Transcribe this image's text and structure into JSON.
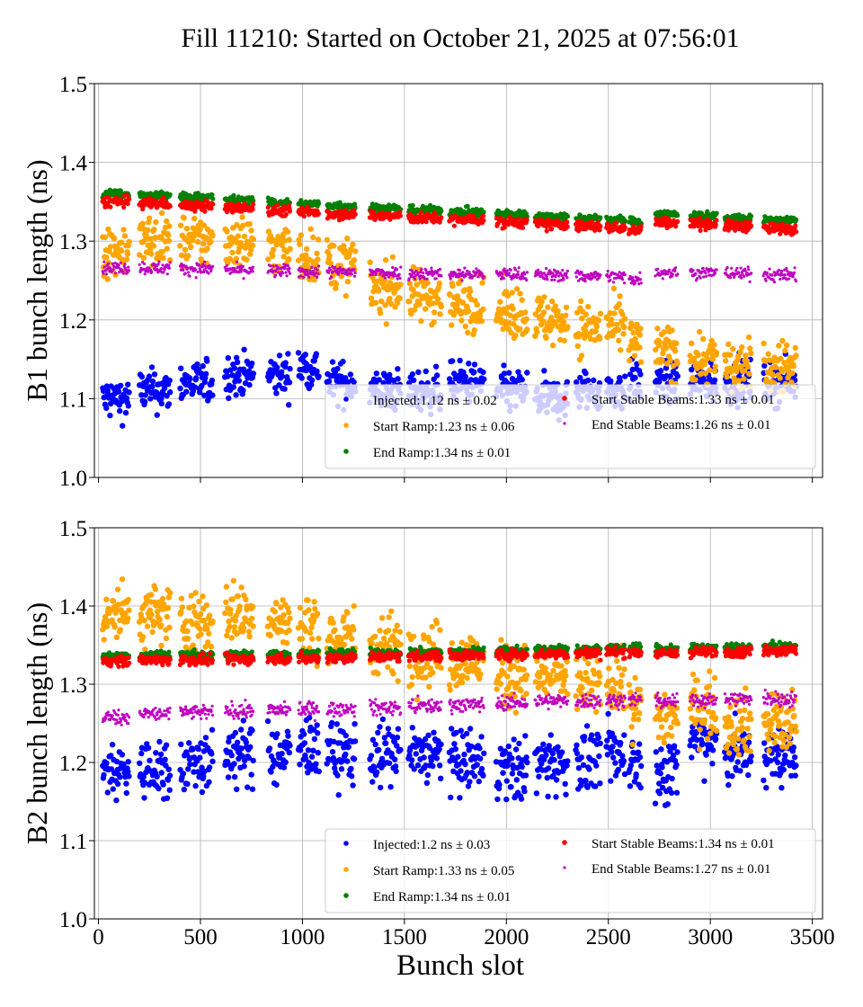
{
  "title": "Fill 11210: Started on October 21, 2025 at 07:56:01",
  "chart_data": [
    {
      "type": "scatter",
      "ylabel": "B1 bunch length (ns)",
      "xlabel": "",
      "xlim": [
        -20,
        3550
      ],
      "ylim": [
        1.0,
        1.5
      ],
      "xticks": [
        "0",
        "500",
        "1000",
        "1500",
        "2000",
        "2500",
        "3000",
        "3500"
      ],
      "yticks": [
        "1.0",
        "1.1",
        "1.2",
        "1.3",
        "1.4",
        "1.5"
      ],
      "grid": true,
      "legend_placement": "lower-right",
      "trains": [
        [
          20,
          150
        ],
        [
          200,
          350
        ],
        [
          400,
          560
        ],
        [
          620,
          760
        ],
        [
          830,
          940
        ],
        [
          980,
          1080
        ],
        [
          1120,
          1260
        ],
        [
          1330,
          1480
        ],
        [
          1520,
          1680
        ],
        [
          1720,
          1890
        ],
        [
          1950,
          2100
        ],
        [
          2140,
          2300
        ],
        [
          2340,
          2460
        ],
        [
          2490,
          2580
        ],
        [
          2600,
          2660
        ],
        [
          2730,
          2840
        ],
        [
          2900,
          3030
        ],
        [
          3070,
          3200
        ],
        [
          3260,
          3420
        ]
      ],
      "series": [
        {
          "name": "Injected:1.12 ns ± 0.02",
          "color": "#0000ff",
          "mean_per_train": [
            1.1,
            1.11,
            1.12,
            1.13,
            1.13,
            1.14,
            1.12,
            1.11,
            1.11,
            1.12,
            1.11,
            1.1,
            1.11,
            1.11,
            1.12,
            1.12,
            1.12,
            1.12,
            1.12
          ]
        },
        {
          "name": "Start Ramp:1.23 ns ± 0.06",
          "color": "#ffa500",
          "mean_per_train": [
            1.29,
            1.3,
            1.3,
            1.3,
            1.29,
            1.28,
            1.27,
            1.24,
            1.23,
            1.22,
            1.21,
            1.2,
            1.19,
            1.19,
            1.17,
            1.16,
            1.15,
            1.14,
            1.14
          ]
        },
        {
          "name": "End Ramp:1.34 ns ± 0.01",
          "color": "#008000",
          "mean_per_train": [
            1.36,
            1.358,
            1.356,
            1.352,
            1.349,
            1.347,
            1.345,
            1.342,
            1.339,
            1.337,
            1.334,
            1.331,
            1.329,
            1.327,
            1.325,
            1.334,
            1.332,
            1.329,
            1.326
          ]
        },
        {
          "name": "Start Stable Beams:1.33 ns ± 0.01",
          "color": "#ff0000",
          "mean_per_train": [
            1.35,
            1.348,
            1.345,
            1.342,
            1.339,
            1.337,
            1.335,
            1.332,
            1.329,
            1.327,
            1.324,
            1.321,
            1.319,
            1.317,
            1.315,
            1.324,
            1.322,
            1.319,
            1.316
          ]
        },
        {
          "name": "End Stable Beams:1.26 ns ± 0.01",
          "color": "#bf00bf",
          "mean_per_train": [
            1.266,
            1.266,
            1.265,
            1.263,
            1.262,
            1.261,
            1.261,
            1.26,
            1.259,
            1.258,
            1.258,
            1.257,
            1.256,
            1.255,
            1.252,
            1.261,
            1.26,
            1.259,
            1.257
          ]
        }
      ]
    },
    {
      "type": "scatter",
      "ylabel": "B2 bunch length (ns)",
      "xlabel": "Bunch slot",
      "xlim": [
        -20,
        3550
      ],
      "ylim": [
        1.0,
        1.5
      ],
      "xticks": [
        "0",
        "500",
        "1000",
        "1500",
        "2000",
        "2500",
        "3000",
        "3500"
      ],
      "yticks": [
        "1.0",
        "1.1",
        "1.2",
        "1.3",
        "1.4",
        "1.5"
      ],
      "grid": true,
      "legend_placement": "lower-right",
      "trains": [
        [
          20,
          150
        ],
        [
          200,
          350
        ],
        [
          400,
          560
        ],
        [
          620,
          760
        ],
        [
          830,
          940
        ],
        [
          980,
          1080
        ],
        [
          1120,
          1260
        ],
        [
          1330,
          1480
        ],
        [
          1520,
          1680
        ],
        [
          1720,
          1890
        ],
        [
          1950,
          2100
        ],
        [
          2140,
          2300
        ],
        [
          2340,
          2460
        ],
        [
          2490,
          2580
        ],
        [
          2600,
          2660
        ],
        [
          2730,
          2840
        ],
        [
          2900,
          3030
        ],
        [
          3070,
          3200
        ],
        [
          3260,
          3420
        ]
      ],
      "series": [
        {
          "name": "Injected:1.2 ns ± 0.03",
          "color": "#0000ff",
          "mean_per_train": [
            1.19,
            1.19,
            1.2,
            1.21,
            1.21,
            1.22,
            1.21,
            1.21,
            1.21,
            1.2,
            1.19,
            1.2,
            1.2,
            1.21,
            1.2,
            1.19,
            1.23,
            1.21,
            1.21
          ]
        },
        {
          "name": "Start Ramp:1.33 ns ± 0.05",
          "color": "#ffa500",
          "mean_per_train": [
            1.39,
            1.39,
            1.38,
            1.39,
            1.38,
            1.37,
            1.36,
            1.35,
            1.34,
            1.33,
            1.31,
            1.31,
            1.3,
            1.3,
            1.27,
            1.26,
            1.27,
            1.25,
            1.25
          ]
        },
        {
          "name": "End Ramp:1.34 ns ± 0.01",
          "color": "#008000",
          "mean_per_train": [
            1.336,
            1.337,
            1.337,
            1.338,
            1.338,
            1.339,
            1.34,
            1.34,
            1.341,
            1.342,
            1.343,
            1.344,
            1.345,
            1.346,
            1.346,
            1.344,
            1.346,
            1.347,
            1.348
          ]
        },
        {
          "name": "Start Stable Beams:1.34 ns ± 0.01",
          "color": "#ff0000",
          "mean_per_train": [
            1.33,
            1.331,
            1.331,
            1.332,
            1.332,
            1.333,
            1.334,
            1.335,
            1.336,
            1.337,
            1.338,
            1.339,
            1.34,
            1.341,
            1.341,
            1.339,
            1.341,
            1.342,
            1.343
          ]
        },
        {
          "name": "End Stable Beams:1.27 ns ± 0.01",
          "color": "#bf00bf",
          "mean_per_train": [
            1.258,
            1.262,
            1.264,
            1.266,
            1.267,
            1.268,
            1.268,
            1.27,
            1.272,
            1.274,
            1.276,
            1.278,
            1.279,
            1.279,
            1.28,
            1.278,
            1.28,
            1.281,
            1.281
          ]
        }
      ]
    }
  ]
}
